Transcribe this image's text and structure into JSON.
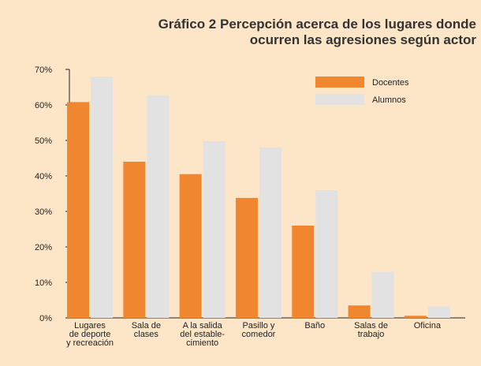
{
  "chart_data": {
    "type": "bar",
    "title": "Gráfico 2 Percepción acerca de los lugares donde\nocurren las agresiones según actor",
    "categories": [
      "Lugares\nde deporte\ny recreación",
      "Sala de\nclases",
      "A la salida\ndel estable-\ncimiento",
      "Pasillo y\ncomedor",
      "Baño",
      "Salas de\ntrabajo",
      "Oficina"
    ],
    "series": [
      {
        "name": "Docentes",
        "color": "#f0862e",
        "values": [
          60.8,
          44,
          40.5,
          33.8,
          26,
          3.5,
          0.6
        ]
      },
      {
        "name": "Alumnos",
        "color": "#e2e2e2",
        "values": [
          68,
          62.7,
          49.8,
          48,
          36,
          13,
          3.2
        ]
      }
    ],
    "ylim": [
      0,
      70
    ],
    "yticks": [
      {
        "value": 0,
        "label": "0%"
      },
      {
        "value": 10,
        "label": "10%"
      },
      {
        "value": 20,
        "label": "20%"
      },
      {
        "value": 30,
        "label": "30%"
      },
      {
        "value": 40,
        "label": "40%"
      },
      {
        "value": 50,
        "label": "50%"
      },
      {
        "value": 60,
        "label": "60%"
      },
      {
        "value": 70,
        "label": "70%"
      }
    ],
    "legend": "top-right"
  }
}
